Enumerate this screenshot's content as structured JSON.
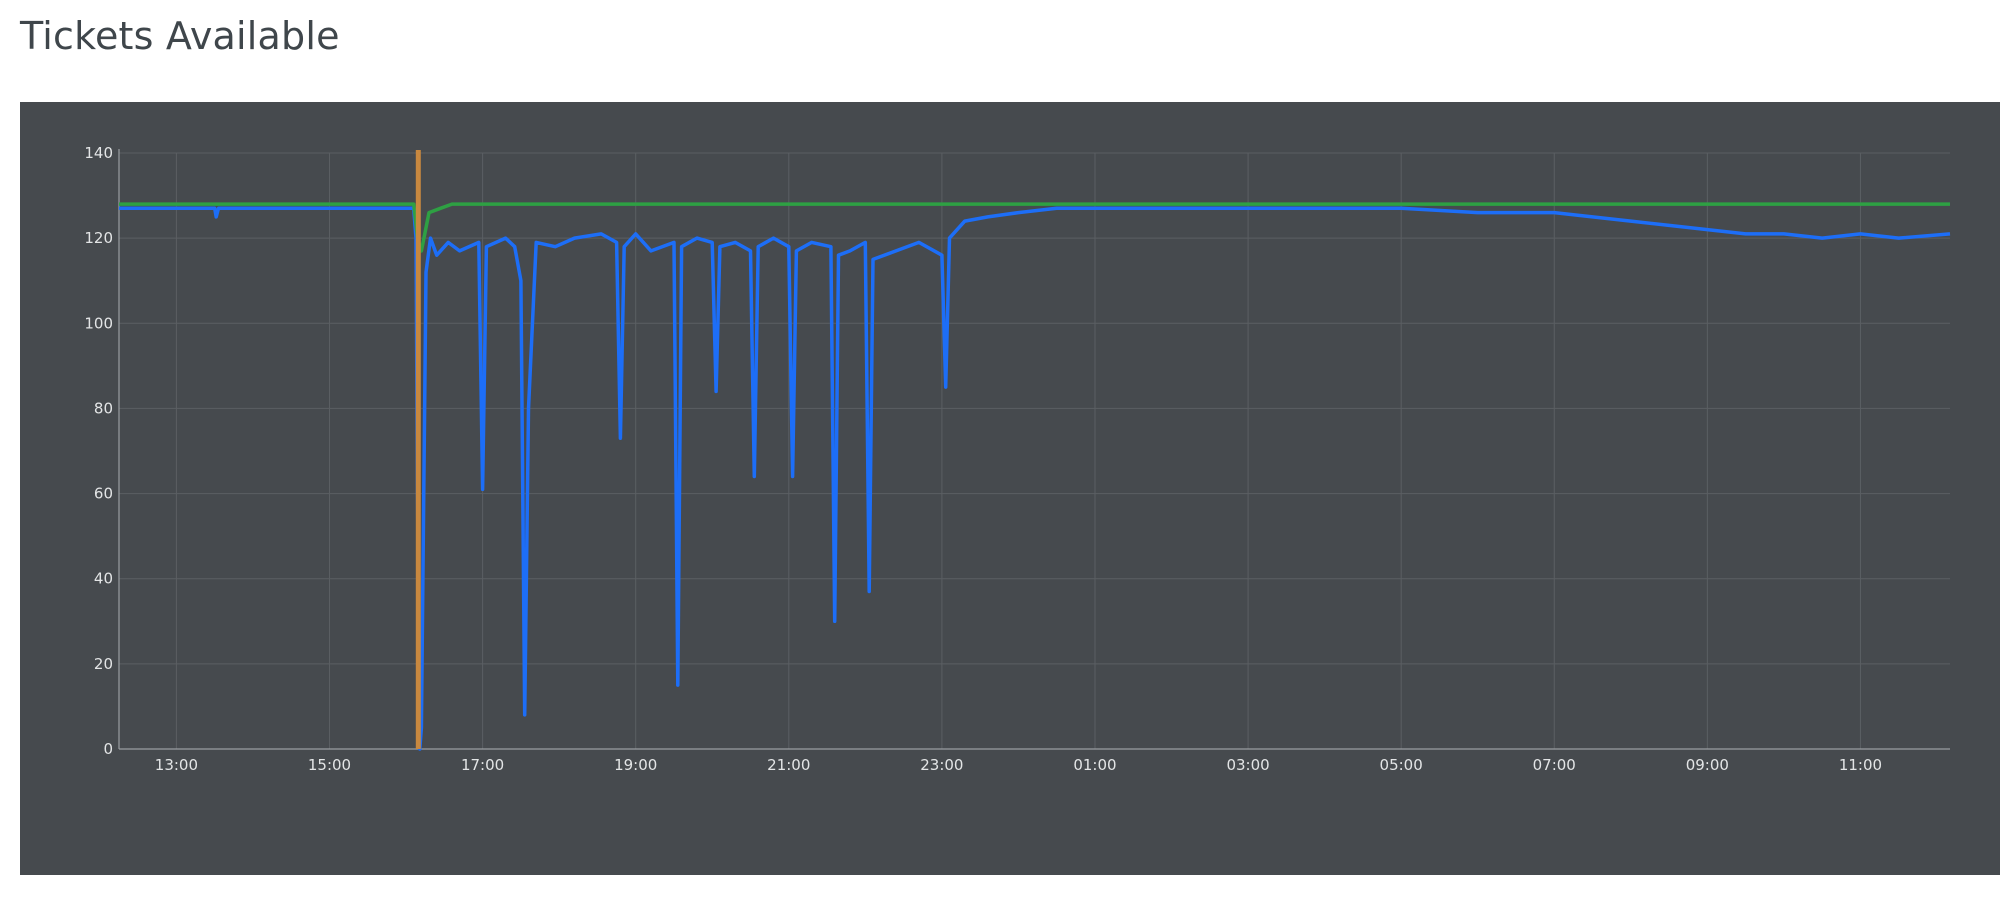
{
  "title": "Tickets Available",
  "colors": {
    "panel_bg": "#464a4e",
    "grid": "#5b5f63",
    "axis": "#9a9ea2",
    "tick_text": "#e3e5e6",
    "series_blue": "#1d6ef7",
    "series_green": "#2ea043",
    "marker_orange": "#c8883f"
  },
  "chart_data": {
    "type": "line",
    "title": "Tickets Available",
    "xlabel": "",
    "ylabel": "",
    "x_unit": "hours after 12:00 (x axis spans 12:15 to next-day 12:00)",
    "xlim": [
      0.25,
      24.17
    ],
    "ylim": [
      0,
      140
    ],
    "grid": true,
    "legend": "none",
    "y_ticks": [
      0,
      20,
      40,
      60,
      80,
      100,
      120,
      140
    ],
    "x_tick_labels": [
      "13:00",
      "15:00",
      "17:00",
      "19:00",
      "21:00",
      "23:00",
      "01:00",
      "03:00",
      "05:00",
      "07:00",
      "09:00",
      "11:00"
    ],
    "x_tick_positions": [
      1,
      3,
      5,
      7,
      9,
      11,
      13,
      15,
      17,
      19,
      21,
      23
    ],
    "vertical_marker": {
      "x": 4.16,
      "label": ""
    },
    "series": [
      {
        "color": "#1d6ef7",
        "x": [
          0.25,
          1.5,
          1.52,
          1.55,
          4.1,
          4.13,
          4.15,
          4.18,
          4.2,
          4.22,
          4.26,
          4.32,
          4.4,
          4.55,
          4.7,
          4.95,
          5.0,
          5.05,
          5.3,
          5.42,
          5.5,
          5.55,
          5.6,
          5.7,
          5.95,
          6.2,
          6.55,
          6.75,
          6.8,
          6.85,
          7.0,
          7.2,
          7.5,
          7.55,
          7.6,
          7.8,
          8.0,
          8.05,
          8.1,
          8.3,
          8.5,
          8.55,
          8.6,
          8.8,
          9.0,
          9.05,
          9.1,
          9.3,
          9.55,
          9.6,
          9.65,
          9.8,
          10.0,
          10.05,
          10.1,
          10.4,
          10.7,
          11.0,
          11.05,
          11.1,
          11.3,
          11.6,
          12.0,
          12.5,
          13.0,
          14.0,
          15.0,
          16.0,
          17.0,
          18.0,
          19.0,
          19.5,
          20.0,
          20.5,
          21.0,
          21.5,
          22.0,
          22.5,
          23.0,
          23.5,
          24.17
        ],
        "y": [
          127,
          127,
          125,
          127,
          127,
          120,
          60,
          0,
          5,
          40,
          112,
          120,
          116,
          119,
          117,
          119,
          61,
          118,
          120,
          118,
          110,
          8,
          80,
          119,
          118,
          120,
          121,
          119,
          73,
          118,
          121,
          117,
          119,
          15,
          118,
          120,
          119,
          84,
          118,
          119,
          117,
          64,
          118,
          120,
          118,
          64,
          117,
          119,
          118,
          30,
          116,
          117,
          119,
          37,
          115,
          117,
          119,
          116,
          85,
          120,
          124,
          125,
          126,
          127,
          127,
          127,
          127,
          127,
          127,
          126,
          126,
          125,
          124,
          123,
          122,
          121,
          121,
          120,
          121,
          120,
          121
        ]
      },
      {
        "color": "#2ea043",
        "x": [
          0.25,
          4.1,
          4.15,
          4.2,
          4.3,
          4.45,
          4.6,
          6.0,
          9.0,
          11.0,
          12.0,
          24.17
        ],
        "y": [
          128,
          128,
          120,
          117,
          126,
          127,
          128,
          128,
          128,
          128,
          128,
          128
        ]
      }
    ]
  }
}
